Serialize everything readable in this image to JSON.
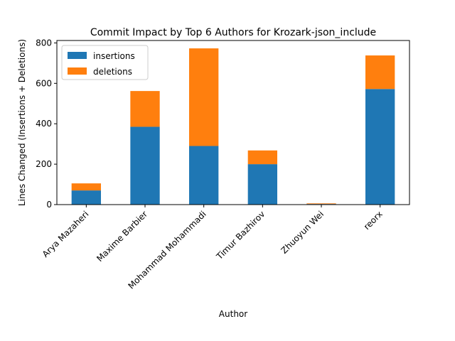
{
  "chart_data": {
    "type": "bar",
    "stacked": true,
    "title": "Commit Impact by Top 6 Authors for Krozark-json_include",
    "xlabel": "Author",
    "ylabel": "Lines Changed (Insertions + Deletions)",
    "categories": [
      "Arya Mazaheri",
      "Maxime Barbier",
      "Mohammad Mohammadi",
      "Timur Bazhirov",
      "Zhuoyun Wei",
      "reorx"
    ],
    "series": [
      {
        "name": "insertions",
        "color": "#1f77b4",
        "values": [
          70,
          385,
          290,
          200,
          3,
          572
        ]
      },
      {
        "name": "deletions",
        "color": "#ff7f0e",
        "values": [
          35,
          177,
          483,
          68,
          3,
          166
        ]
      }
    ],
    "ylim": [
      0,
      812
    ],
    "yticks": [
      0,
      200,
      400,
      600,
      800
    ],
    "grid": false,
    "legend_position": "top-left"
  }
}
